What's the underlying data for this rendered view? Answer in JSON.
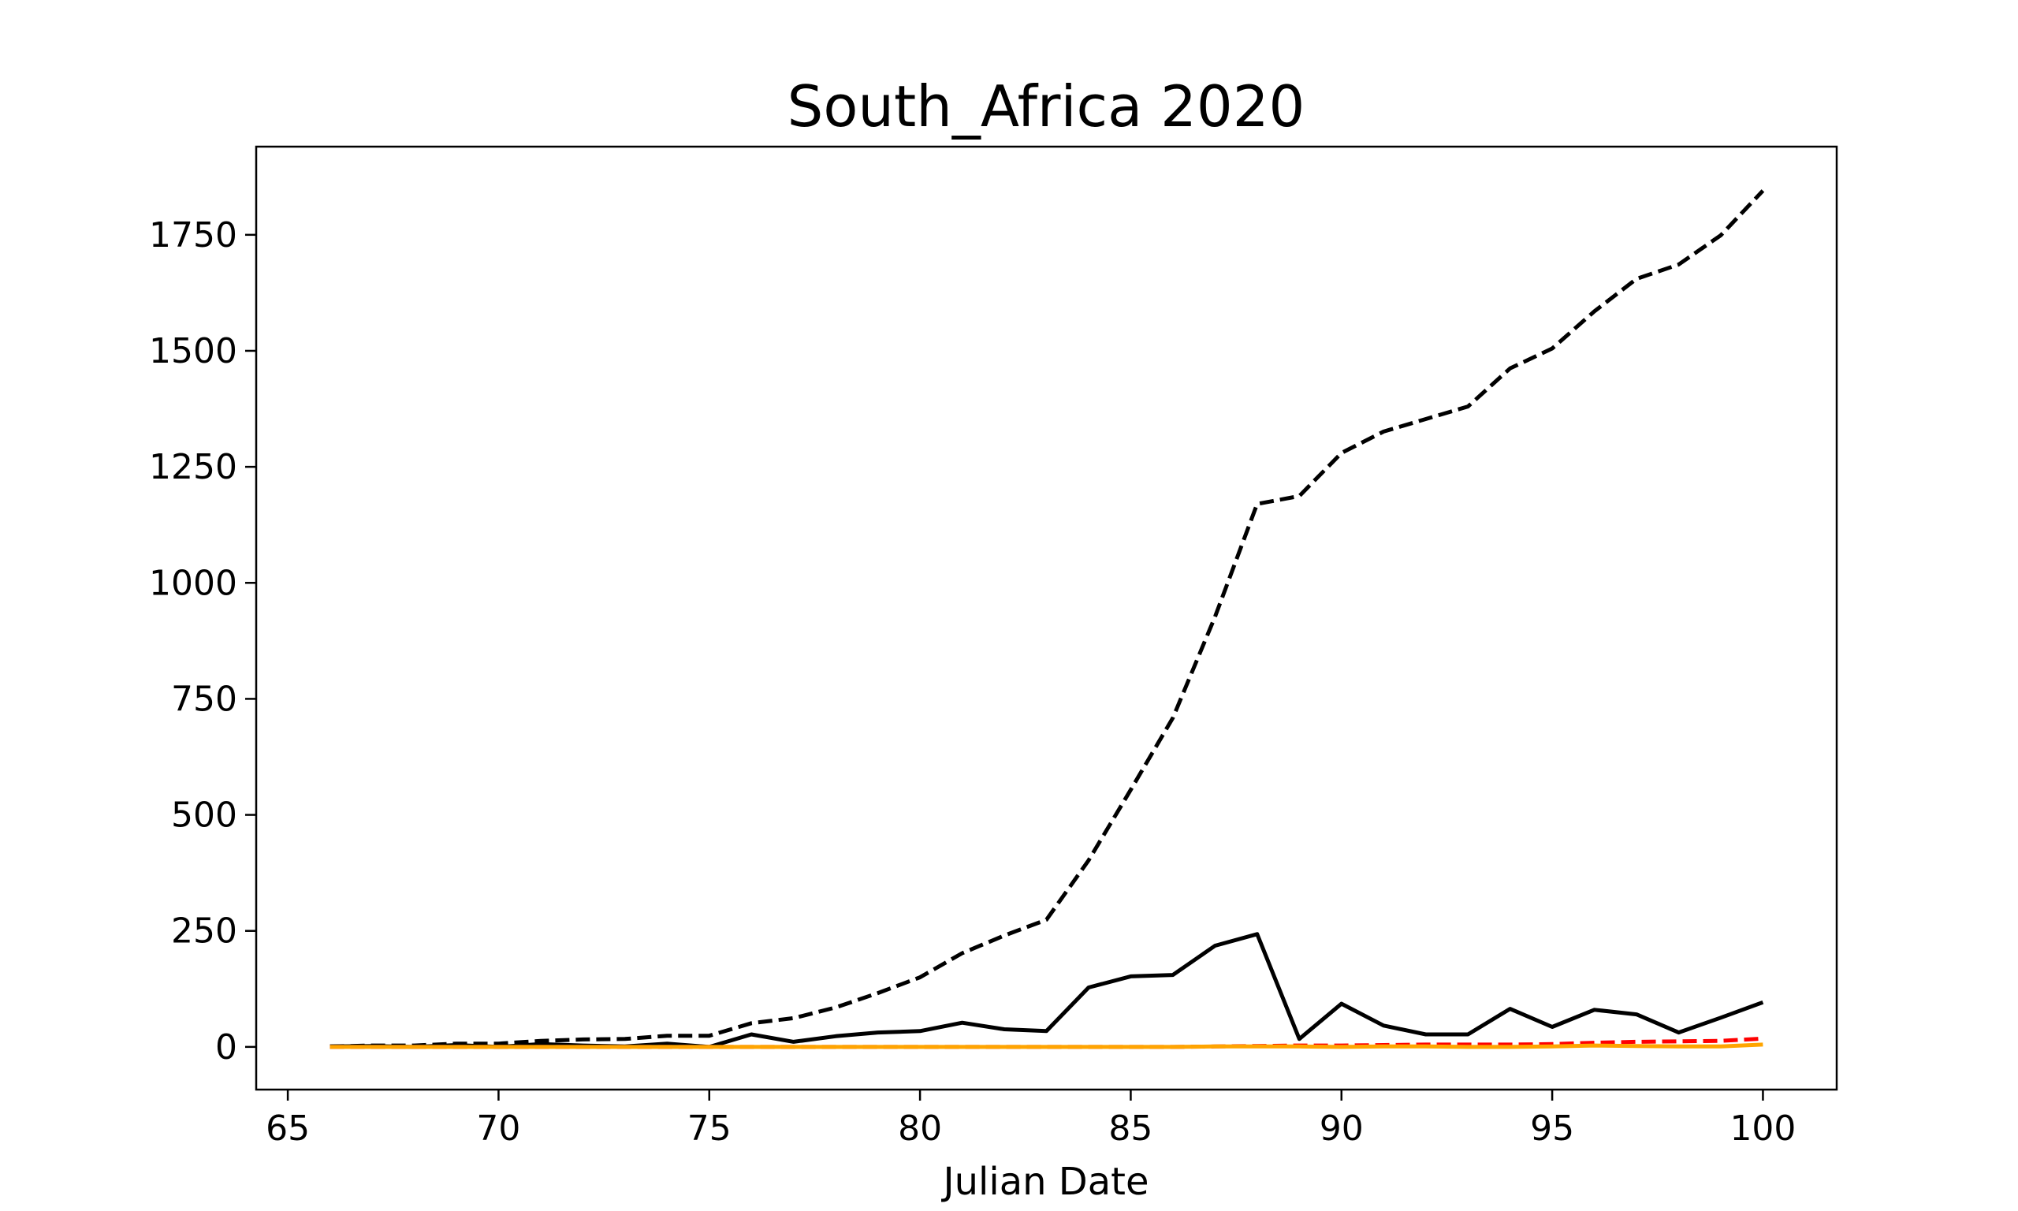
{
  "chart_data": {
    "type": "line",
    "title": "South_Africa 2020",
    "xlabel": "Julian Date",
    "ylabel": "",
    "xlim": [
      64.25,
      101.75
    ],
    "ylim": [
      -92,
      1940
    ],
    "grid": false,
    "legend": "none",
    "xticks": [
      65,
      70,
      75,
      80,
      85,
      90,
      95,
      100
    ],
    "yticks": [
      0,
      250,
      500,
      750,
      1000,
      1250,
      1500,
      1750
    ],
    "x": [
      66,
      67,
      68,
      69,
      70,
      71,
      72,
      73,
      74,
      75,
      76,
      77,
      78,
      79,
      80,
      81,
      82,
      83,
      84,
      85,
      86,
      87,
      88,
      89,
      90,
      91,
      92,
      93,
      94,
      95,
      96,
      97,
      98,
      99,
      100
    ],
    "series": [
      {
        "color": "#000000",
        "dash": "dashed",
        "values": [
          1,
          3,
          3,
          7,
          7,
          13,
          16,
          17,
          24,
          24,
          51,
          62,
          85,
          116,
          150,
          202,
          240,
          274,
          402,
          554,
          709,
          927,
          1170,
          1187,
          1280,
          1326,
          1353,
          1380,
          1462,
          1505,
          1585,
          1655,
          1686,
          1749,
          1845
        ]
      },
      {
        "color": "#000000",
        "dash": "solid",
        "values": [
          1,
          2,
          0,
          4,
          0,
          6,
          3,
          1,
          7,
          0,
          27,
          11,
          23,
          31,
          34,
          52,
          38,
          34,
          128,
          152,
          155,
          218,
          243,
          17,
          93,
          46,
          27,
          27,
          82,
          43,
          80,
          70,
          31,
          63,
          96
        ]
      },
      {
        "color": "#ff0000",
        "dash": "dashed",
        "values": [
          0,
          0,
          0,
          0,
          0,
          0,
          0,
          0,
          0,
          0,
          0,
          0,
          0,
          0,
          0,
          0,
          0,
          0,
          0,
          0,
          0,
          1,
          2,
          3,
          3,
          4,
          5,
          5,
          5,
          6,
          9,
          11,
          12,
          13,
          18
        ]
      },
      {
        "color": "#ffa500",
        "dash": "solid",
        "values": [
          0,
          0,
          0,
          0,
          0,
          0,
          0,
          0,
          0,
          0,
          0,
          0,
          0,
          0,
          0,
          0,
          0,
          0,
          0,
          0,
          0,
          1,
          1,
          1,
          0,
          1,
          1,
          0,
          0,
          1,
          3,
          2,
          1,
          1,
          5
        ]
      }
    ]
  }
}
